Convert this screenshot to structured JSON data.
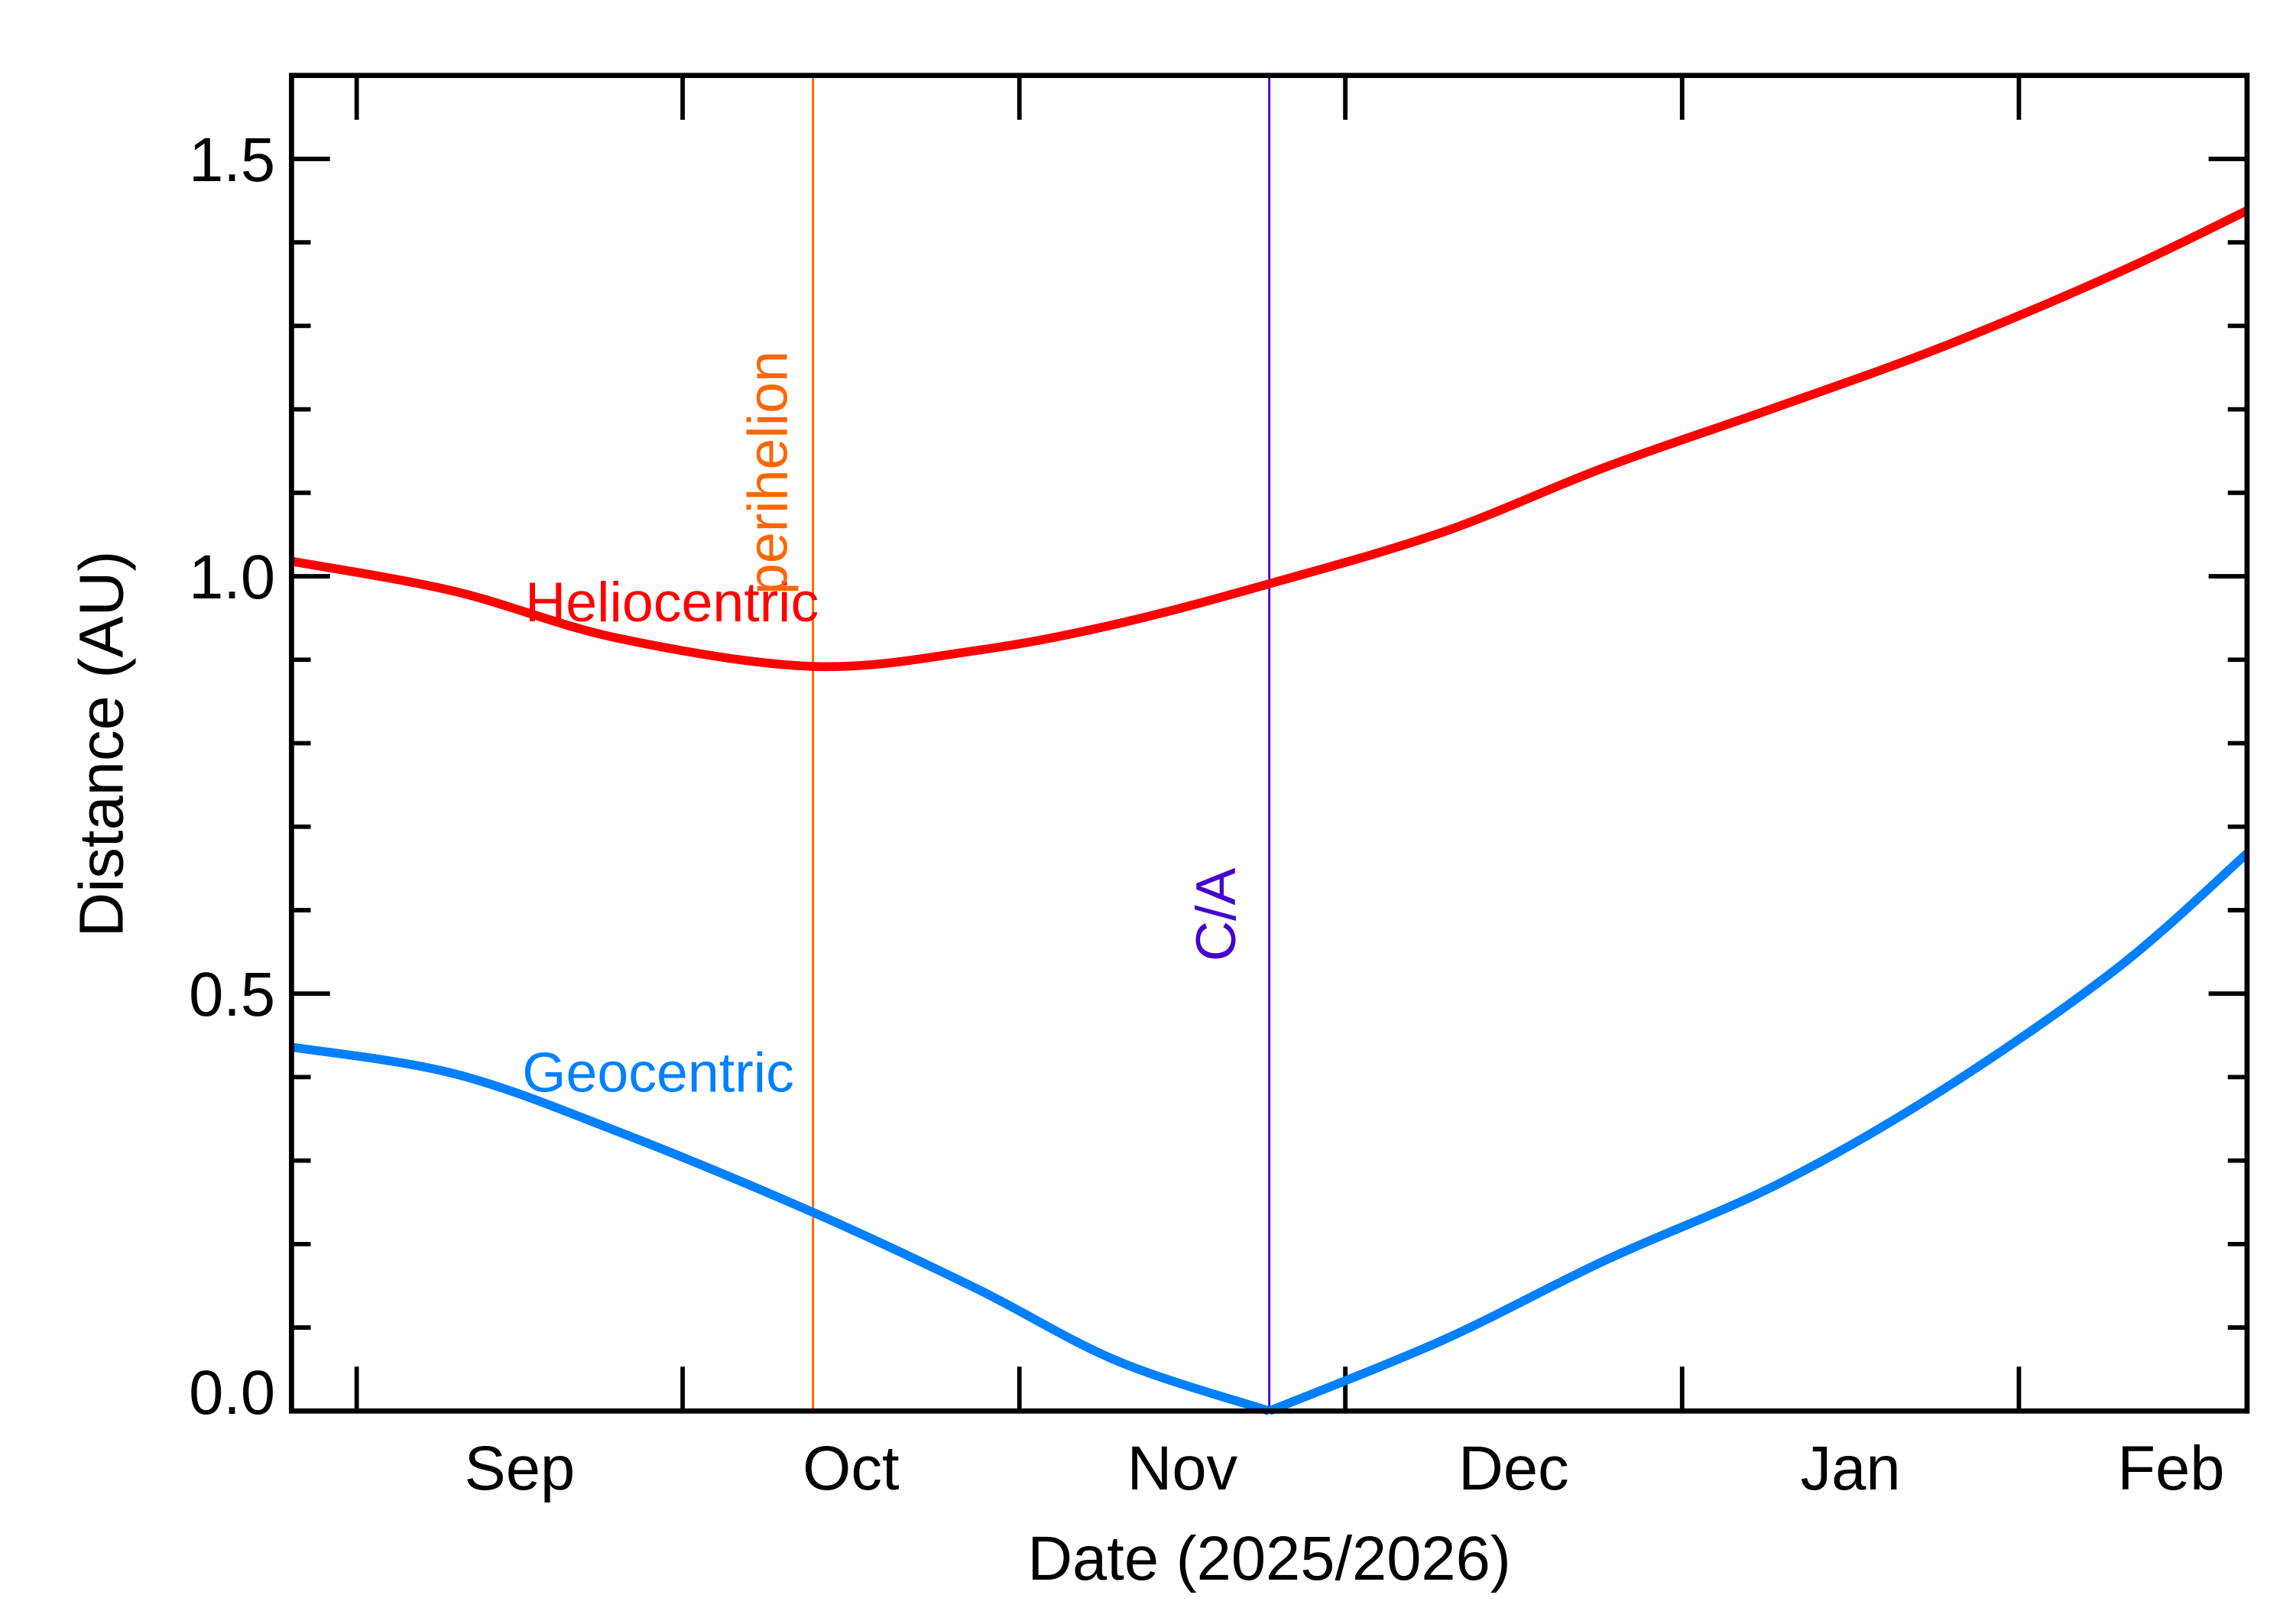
{
  "chart_data": {
    "type": "line",
    "title": "",
    "xlabel": "Date (2025/2026)",
    "ylabel": "Distance (AU)",
    "xlim": [
      "2025-08-26",
      "2026-02-22"
    ],
    "ylim": [
      0,
      1.6
    ],
    "grid": false,
    "x_tick_dates": [
      "2025-09-01",
      "2025-10-01",
      "2025-11-01",
      "2025-12-01",
      "2026-01-01",
      "2026-02-01"
    ],
    "x_tick_labels": [
      "Sep",
      "Oct",
      "Nov",
      "Dec",
      "Jan",
      "Feb"
    ],
    "y_ticks": [
      0.0,
      0.5,
      1.0,
      1.5
    ],
    "y_tick_labels": [
      "0.0",
      "0.5",
      "1.0",
      "1.5"
    ],
    "y_minor_step": 0.1,
    "series": [
      {
        "name": "Heliocentric",
        "color": "#ff0000",
        "x": [
          "2025-08-26",
          "2025-09-10",
          "2025-09-25",
          "2025-10-13",
          "2025-10-28",
          "2025-11-10",
          "2025-11-24",
          "2025-12-10",
          "2025-12-25",
          "2026-01-10",
          "2026-01-25",
          "2026-02-10",
          "2026-02-22"
        ],
        "y": [
          1.018,
          0.982,
          0.926,
          0.892,
          0.911,
          0.943,
          0.991,
          1.053,
          1.131,
          1.204,
          1.275,
          1.363,
          1.438
        ]
      },
      {
        "name": "Geocentric",
        "color": "#0080ff",
        "x": [
          "2025-08-26",
          "2025-09-10",
          "2025-09-25",
          "2025-10-13",
          "2025-10-28",
          "2025-11-10",
          "2025-11-24",
          "2025-12-10",
          "2025-12-25",
          "2026-01-10",
          "2026-01-25",
          "2026-02-10",
          "2026-02-22"
        ],
        "y": [
          0.436,
          0.404,
          0.335,
          0.238,
          0.147,
          0.06,
          0.0,
          0.085,
          0.181,
          0.273,
          0.385,
          0.53,
          0.668
        ]
      }
    ],
    "annotations": [
      {
        "label": "perihelion",
        "date": "2025-10-13",
        "color": "#ff6600"
      },
      {
        "label": "C/A",
        "date": "2025-11-24",
        "color": "#4400cc"
      }
    ]
  }
}
